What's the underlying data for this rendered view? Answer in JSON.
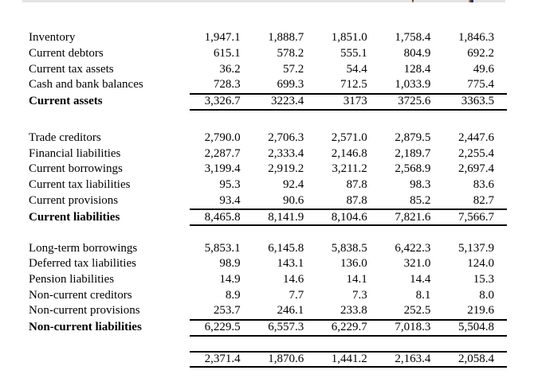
{
  "document": {
    "clipped_top_strip": {
      "band_color": "#e4e4e4",
      "mark_colors": [
        "#39406e",
        "#c87a2a",
        "#2a3560"
      ]
    },
    "balance_sheet": {
      "sections": [
        {
          "name": "current-assets",
          "rows": [
            {
              "label": "Inventory",
              "values": [
                "1,947.1",
                "1,888.7",
                "1,851.0",
                "1,758.4",
                "1,846.3"
              ]
            },
            {
              "label": "Current debtors",
              "values": [
                "615.1",
                "578.2",
                "555.1",
                "804.9",
                "692.2"
              ]
            },
            {
              "label": "Current tax assets",
              "values": [
                "36.2",
                "57.2",
                "54.4",
                "128.4",
                "49.6"
              ]
            },
            {
              "label": "Cash and bank balances",
              "values": [
                "728.3",
                "699.3",
                "712.5",
                "1,033.9",
                "775.4"
              ]
            },
            {
              "label": "Current assets",
              "values": [
                "3,326.7",
                "3223.4",
                "3173",
                "3725.6",
                "3363.5"
              ],
              "total": true
            }
          ]
        },
        {
          "name": "current-liabilities",
          "rows": [
            {
              "label": "Trade creditors",
              "values": [
                "2,790.0",
                "2,706.3",
                "2,571.0",
                "2,879.5",
                "2,447.6"
              ]
            },
            {
              "label": "Financial liabilities",
              "values": [
                "2,287.7",
                "2,333.4",
                "2,146.8",
                "2,189.7",
                "2,255.4"
              ]
            },
            {
              "label": "Current borrowings",
              "values": [
                "3,199.4",
                "2,919.2",
                "3,211.2",
                "2,568.9",
                "2,697.4"
              ]
            },
            {
              "label": "Current tax liabilities",
              "values": [
                "95.3",
                "92.4",
                "87.8",
                "98.3",
                "83.6"
              ]
            },
            {
              "label": "Current provisions",
              "values": [
                "93.4",
                "90.6",
                "87.8",
                "85.2",
                "82.7"
              ]
            },
            {
              "label": "Current liabilities",
              "values": [
                "8,465.8",
                "8,141.9",
                "8,104.6",
                "7,821.6",
                "7,566.7"
              ],
              "total": true
            }
          ]
        },
        {
          "name": "non-current-liabilities",
          "rows": [
            {
              "label": "Long-term borrowings",
              "values": [
                "5,853.1",
                "6,145.8",
                "5,838.5",
                "6,422.3",
                "5,137.9"
              ]
            },
            {
              "label": "Deferred tax liabilities",
              "values": [
                "98.9",
                "143.1",
                "136.0",
                "321.0",
                "124.0"
              ]
            },
            {
              "label": "Pension liabilities",
              "values": [
                "14.9",
                "14.6",
                "14.1",
                "14.4",
                "15.3"
              ]
            },
            {
              "label": "Non-current creditors",
              "values": [
                "8.9",
                "7.7",
                "7.3",
                "8.1",
                "8.0"
              ]
            },
            {
              "label": "Non-current provisions",
              "values": [
                "253.7",
                "246.1",
                "233.8",
                "252.5",
                "219.6"
              ]
            },
            {
              "label": "Non-current liabilities",
              "values": [
                "6,229.5",
                "6,557.3",
                "6,229.7",
                "7,018.3",
                "5,504.8"
              ],
              "total": true
            }
          ]
        }
      ],
      "net_row": {
        "values": [
          "2,371.4",
          "1,870.6",
          "1,441.2",
          "2,163.4",
          "2,058.4"
        ]
      }
    }
  }
}
